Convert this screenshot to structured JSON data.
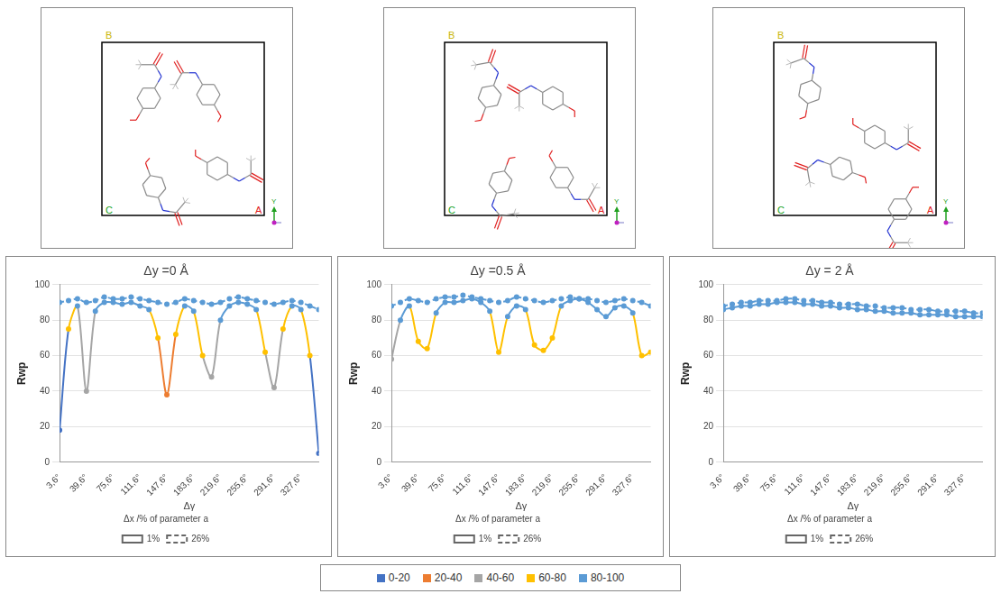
{
  "structure_panels": [
    {
      "cell_labels": {
        "a": "A",
        "b": "B",
        "c": "C"
      },
      "axis": "Y"
    },
    {
      "cell_labels": {
        "a": "A",
        "b": "B",
        "c": "C"
      },
      "axis": "Y"
    },
    {
      "cell_labels": {
        "a": "A",
        "b": "B",
        "c": "C"
      },
      "axis": "Y"
    }
  ],
  "color_bands": [
    {
      "label": "0-20",
      "range": [
        0,
        20
      ],
      "color": "#4472c4"
    },
    {
      "label": "20-40",
      "range": [
        20,
        40
      ],
      "color": "#ed7d31"
    },
    {
      "label": "40-60",
      "range": [
        40,
        60
      ],
      "color": "#a5a5a5"
    },
    {
      "label": "60-80",
      "range": [
        60,
        80
      ],
      "color": "#ffc000"
    },
    {
      "label": "80-100",
      "range": [
        80,
        100
      ],
      "color": "#5b9bd5"
    }
  ],
  "chart_data": [
    {
      "type": "line",
      "title": "Δy =0 Å",
      "xlabel": "Δγ",
      "ylabel": "Rwp",
      "zlabel": "Δx /% of parameter a",
      "categories": [
        "3,6°",
        null,
        null,
        "39,6°",
        null,
        null,
        "75,6°",
        null,
        null,
        "111,6°",
        null,
        null,
        "147,6°",
        null,
        null,
        "183,6°",
        null,
        null,
        "219,6°",
        null,
        null,
        "255,6°",
        null,
        null,
        "291,6°",
        null,
        null,
        "327,6°",
        null,
        null
      ],
      "series": [
        {
          "name": "1%",
          "line_style": "solid",
          "values": [
            18,
            75,
            88,
            40,
            85,
            90,
            90,
            89,
            90,
            88,
            86,
            70,
            38,
            72,
            88,
            85,
            60,
            48,
            80,
            88,
            90,
            89,
            86,
            62,
            42,
            75,
            88,
            86,
            60,
            5
          ]
        },
        {
          "name": "26%",
          "line_style": "dashed",
          "values": [
            90,
            91,
            92,
            90,
            91,
            93,
            92,
            92,
            93,
            92,
            91,
            90,
            89,
            90,
            92,
            91,
            90,
            89,
            90,
            92,
            93,
            92,
            91,
            90,
            89,
            90,
            91,
            90,
            88,
            86
          ]
        }
      ],
      "ylim": [
        0,
        100
      ],
      "yticks": [
        0,
        20,
        40,
        60,
        80,
        100
      ],
      "grid": true,
      "legend": "bottom"
    },
    {
      "type": "line",
      "title": "Δy =0.5 Å",
      "xlabel": "Δγ",
      "ylabel": "Rwp",
      "zlabel": "Δx /% of parameter a",
      "categories": [
        "3,6°",
        null,
        null,
        "39,6°",
        null,
        null,
        "75,6°",
        null,
        null,
        "111,6°",
        null,
        null,
        "147,6°",
        null,
        null,
        "183,6°",
        null,
        null,
        "219,6°",
        null,
        null,
        "255,6°",
        null,
        null,
        "291,6°",
        null,
        null,
        "327,6°",
        null,
        null
      ],
      "series": [
        {
          "name": "1%",
          "line_style": "solid",
          "values": [
            58,
            80,
            88,
            68,
            64,
            84,
            90,
            90,
            91,
            92,
            90,
            85,
            62,
            82,
            88,
            86,
            66,
            63,
            70,
            88,
            91,
            92,
            90,
            86,
            82,
            87,
            88,
            84,
            60,
            62
          ]
        },
        {
          "name": "26%",
          "line_style": "dashed",
          "values": [
            88,
            90,
            92,
            91,
            90,
            92,
            93,
            93,
            94,
            93,
            92,
            91,
            90,
            91,
            93,
            92,
            91,
            90,
            91,
            92,
            93,
            92,
            92,
            91,
            90,
            91,
            92,
            91,
            90,
            88
          ]
        }
      ],
      "ylim": [
        0,
        100
      ],
      "yticks": [
        0,
        20,
        40,
        60,
        80,
        100
      ],
      "grid": true,
      "legend": "bottom"
    },
    {
      "type": "line",
      "title": "Δy = 2 Å",
      "xlabel": "Δγ",
      "ylabel": "Rwp",
      "zlabel": "Δx /% of parameter a",
      "categories": [
        "3,6°",
        null,
        null,
        "39,6°",
        null,
        null,
        "75,6°",
        null,
        null,
        "111,6°",
        null,
        null,
        "147,6°",
        null,
        null,
        "183,6°",
        null,
        null,
        "219,6°",
        null,
        null,
        "255,6°",
        null,
        null,
        "291,6°",
        null,
        null,
        "327,6°",
        null,
        null
      ],
      "series": [
        {
          "name": "1%",
          "line_style": "solid",
          "values": [
            86,
            87,
            88,
            88,
            89,
            89,
            90,
            90,
            90,
            89,
            89,
            88,
            88,
            87,
            87,
            86,
            86,
            85,
            85,
            84,
            84,
            84,
            83,
            83,
            83,
            83,
            82,
            82,
            82,
            82
          ]
        },
        {
          "name": "26%",
          "line_style": "dashed",
          "values": [
            88,
            89,
            90,
            90,
            91,
            91,
            91,
            92,
            92,
            91,
            91,
            90,
            90,
            89,
            89,
            89,
            88,
            88,
            87,
            87,
            87,
            86,
            86,
            86,
            85,
            85,
            85,
            85,
            84,
            84
          ]
        }
      ],
      "ylim": [
        0,
        100
      ],
      "yticks": [
        0,
        20,
        40,
        60,
        80,
        100
      ],
      "grid": true,
      "legend": "bottom"
    }
  ]
}
